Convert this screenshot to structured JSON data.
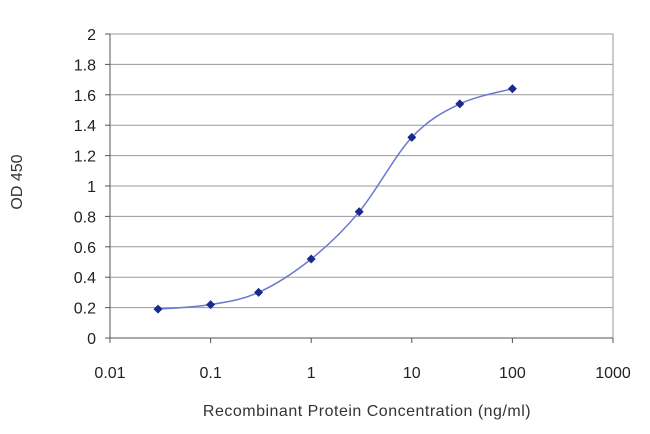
{
  "chart_data": {
    "type": "line",
    "title": "",
    "xlabel": "Recombinant Protein Concentration (ng/ml)",
    "ylabel": "OD 450",
    "x_scale": "log",
    "xlim": [
      0.01,
      1000
    ],
    "ylim": [
      0,
      2
    ],
    "x_ticks": [
      "0.01",
      "0.1",
      "1",
      "10",
      "100",
      "1000"
    ],
    "y_ticks": [
      "0",
      "0.2",
      "0.4",
      "0.6",
      "0.8",
      "1",
      "1.2",
      "1.4",
      "1.6",
      "1.8",
      "2"
    ],
    "grid": true,
    "legend": "none",
    "series": [
      {
        "color": "#6a78d0",
        "marker_color": "#1a2a8a",
        "x": [
          0.03,
          0.1,
          0.3,
          1,
          3,
          10,
          30,
          100
        ],
        "y": [
          0.19,
          0.22,
          0.3,
          0.52,
          0.83,
          1.32,
          1.54,
          1.64
        ]
      }
    ]
  }
}
